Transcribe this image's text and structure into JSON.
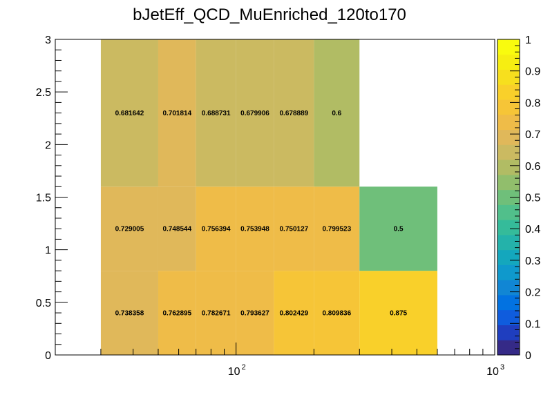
{
  "chart_data": {
    "type": "heatmap",
    "title": "bJetEff_QCD_MuEnriched_120to170",
    "xlabel": "",
    "ylabel": "",
    "x_scale": "log",
    "xlim": [
      20,
      1000
    ],
    "ylim": [
      0,
      3
    ],
    "zlim": [
      0,
      1
    ],
    "x_bin_edges": [
      30,
      50,
      70,
      100,
      140,
      200,
      300,
      600
    ],
    "y_bin_edges": [
      0,
      0.8,
      1.6,
      3.0
    ],
    "x_tick_labels": [
      "10",
      "2",
      "10",
      "3"
    ],
    "y_ticks": [
      0,
      0.5,
      1,
      1.5,
      2,
      2.5,
      3
    ],
    "y_tick_labels": [
      "0",
      "0.5",
      "1",
      "1.5",
      "2",
      "2.5",
      "3"
    ],
    "z_ticks": [
      0,
      0.1,
      0.2,
      0.3,
      0.4,
      0.5,
      0.6,
      0.7,
      0.8,
      0.9,
      1
    ],
    "z_tick_labels": [
      "0",
      "0.1",
      "0.2",
      "0.3",
      "0.4",
      "0.5",
      "0.6",
      "0.7",
      "0.8",
      "0.9",
      "1"
    ],
    "cells": [
      {
        "xbin": 0,
        "ybin": 0,
        "value": 0.738358,
        "label": "0.738358"
      },
      {
        "xbin": 1,
        "ybin": 0,
        "value": 0.762895,
        "label": "0.762895"
      },
      {
        "xbin": 2,
        "ybin": 0,
        "value": 0.782671,
        "label": "0.782671"
      },
      {
        "xbin": 3,
        "ybin": 0,
        "value": 0.793627,
        "label": "0.793627"
      },
      {
        "xbin": 4,
        "ybin": 0,
        "value": 0.802429,
        "label": "0.802429"
      },
      {
        "xbin": 5,
        "ybin": 0,
        "value": 0.809836,
        "label": "0.809836"
      },
      {
        "xbin": 6,
        "ybin": 0,
        "value": 0.875,
        "label": "0.875"
      },
      {
        "xbin": 0,
        "ybin": 1,
        "value": 0.729005,
        "label": "0.729005"
      },
      {
        "xbin": 1,
        "ybin": 1,
        "value": 0.748544,
        "label": "0.748544"
      },
      {
        "xbin": 2,
        "ybin": 1,
        "value": 0.756394,
        "label": "0.756394"
      },
      {
        "xbin": 3,
        "ybin": 1,
        "value": 0.753948,
        "label": "0.753948"
      },
      {
        "xbin": 4,
        "ybin": 1,
        "value": 0.750127,
        "label": "0.750127"
      },
      {
        "xbin": 5,
        "ybin": 1,
        "value": 0.799523,
        "label": "0.799523"
      },
      {
        "xbin": 6,
        "ybin": 1,
        "value": 0.5,
        "label": "0.5"
      },
      {
        "xbin": 0,
        "ybin": 2,
        "value": 0.681642,
        "label": "0.681642"
      },
      {
        "xbin": 1,
        "ybin": 2,
        "value": 0.701814,
        "label": "0.701814"
      },
      {
        "xbin": 2,
        "ybin": 2,
        "value": 0.688731,
        "label": "0.688731"
      },
      {
        "xbin": 3,
        "ybin": 2,
        "value": 0.679906,
        "label": "0.679906"
      },
      {
        "xbin": 4,
        "ybin": 2,
        "value": 0.678889,
        "label": "0.678889"
      },
      {
        "xbin": 5,
        "ybin": 2,
        "value": 0.6,
        "label": "0.6"
      }
    ],
    "palette": [
      "#352a87",
      "#1f3ebf",
      "#0f5cdd",
      "#0272e1",
      "#1186d4",
      "#0f99cc",
      "#14a7bd",
      "#24b2aa",
      "#35bb9a",
      "#51bf8b",
      "#6fbf7a",
      "#91be6c",
      "#b1bc64",
      "#cbba61",
      "#e0b85a",
      "#efbc48",
      "#f6c537",
      "#f9d02a",
      "#f7df1e",
      "#f6ee12",
      "#f9fb0e"
    ]
  }
}
